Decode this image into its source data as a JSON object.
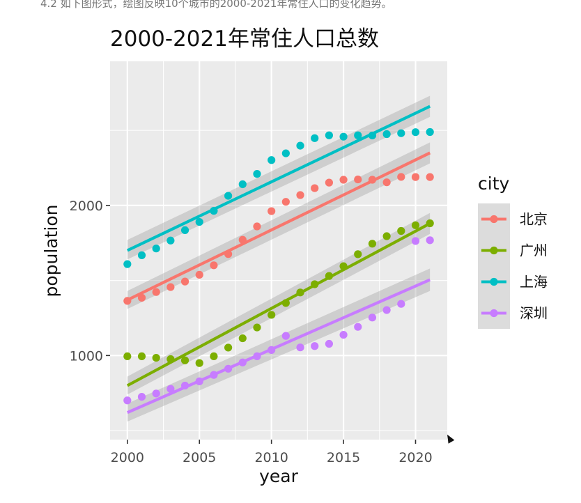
{
  "page": {
    "header_text": "4.2 如下图形式，绘图反映10个城市的2000-2021年常住人口的变化趋势。"
  },
  "chart_data": {
    "type": "scatter",
    "title": "2000-2021年常住人口总数",
    "xlabel": "year",
    "ylabel": "population",
    "xlim": [
      1998.8,
      2022.2
    ],
    "ylim": [
      440,
      2960
    ],
    "x_ticks": [
      2000,
      2005,
      2010,
      2015,
      2020
    ],
    "x_tick_labels": [
      "2000",
      "2005",
      "2010",
      "2015",
      "2020"
    ],
    "y_ticks": [
      1000,
      2000
    ],
    "y_tick_labels": [
      "1000",
      "2000"
    ],
    "grid": true,
    "legend_title": "city",
    "legend_position": "right",
    "smooth": "linear regression with confidence band",
    "x": [
      2000,
      2001,
      2002,
      2003,
      2004,
      2005,
      2006,
      2007,
      2008,
      2009,
      2010,
      2011,
      2012,
      2013,
      2014,
      2015,
      2016,
      2017,
      2018,
      2019,
      2020,
      2021
    ],
    "series": [
      {
        "name": "北京",
        "color": "#F8766D",
        "values": [
          1364,
          1385,
          1423,
          1456,
          1493,
          1538,
          1601,
          1676,
          1771,
          1860,
          1962,
          2024,
          2069,
          2115,
          2152,
          2171,
          2173,
          2171,
          2154,
          2190,
          2189,
          2189
        ],
        "fit": [
          1370,
          2350
        ],
        "band": [
          [
            1310,
            1430
          ],
          [
            2280,
            2420
          ]
        ]
      },
      {
        "name": "广州",
        "color": "#7CAE00",
        "values": [
          995,
          995,
          985,
          976,
          968,
          950,
          995,
          1053,
          1115,
          1187,
          1271,
          1350,
          1420,
          1475,
          1530,
          1595,
          1675,
          1745,
          1795,
          1830,
          1868,
          1881
        ],
        "fit": [
          800,
          1880
        ],
        "band": [
          [
            740,
            860
          ],
          [
            1810,
            1950
          ]
        ]
      },
      {
        "name": "上海",
        "color": "#00BFC4",
        "values": [
          1609,
          1668,
          1713,
          1766,
          1835,
          1890,
          1964,
          2064,
          2141,
          2210,
          2302,
          2347,
          2398,
          2448,
          2467,
          2458,
          2467,
          2466,
          2475,
          2481,
          2488,
          2489
        ],
        "fit": [
          1700,
          2660
        ],
        "band": [
          [
            1640,
            1770
          ],
          [
            2590,
            2730
          ]
        ]
      },
      {
        "name": "深圳",
        "color": "#C77CFF",
        "values": [
          701,
          725,
          747,
          778,
          800,
          828,
          871,
          912,
          954,
          995,
          1037,
          1131,
          1054,
          1063,
          1078,
          1138,
          1191,
          1253,
          1303,
          1344,
          1763,
          1768
        ],
        "fit": [
          620,
          1505
        ],
        "band": [
          [
            560,
            680
          ],
          [
            1430,
            1580
          ]
        ]
      }
    ]
  }
}
